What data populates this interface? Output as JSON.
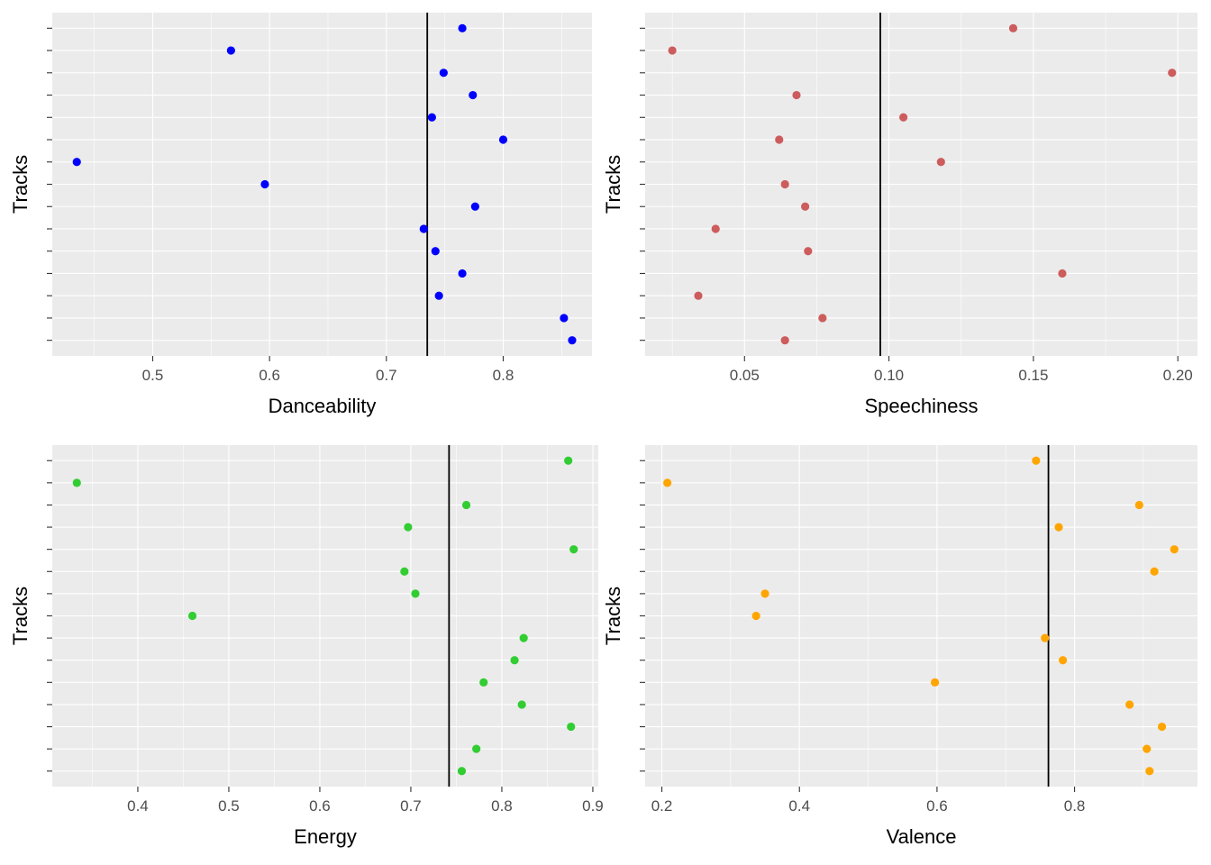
{
  "chart_data": [
    {
      "type": "scatter",
      "xlabel": "Danceability",
      "ylabel": "Tracks",
      "xlim": [
        0.414,
        0.876
      ],
      "x_ticks": [
        0.5,
        0.6,
        0.7,
        0.8
      ],
      "x_tick_labels": [
        "0.5",
        "0.6",
        "0.7",
        "0.8"
      ],
      "color": "#0000FF",
      "reference_line": 0.735,
      "x": [
        0.765,
        0.567,
        0.749,
        0.774,
        0.739,
        0.8,
        0.435,
        0.596,
        0.776,
        0.732,
        0.742,
        0.765,
        0.745,
        0.852,
        0.859
      ]
    },
    {
      "type": "scatter",
      "xlabel": "Speechiness",
      "ylabel": "Tracks",
      "xlim": [
        0.0156,
        0.2068
      ],
      "x_ticks": [
        0.05,
        0.1,
        0.15,
        0.2
      ],
      "x_tick_labels": [
        "0.05",
        "0.10",
        "0.15",
        "0.20"
      ],
      "color": "#CD5C5C",
      "reference_line": 0.097,
      "x": [
        0.143,
        0.025,
        0.198,
        0.068,
        0.105,
        0.062,
        0.118,
        0.064,
        0.071,
        0.04,
        0.072,
        0.16,
        0.034,
        0.077,
        0.064
      ]
    },
    {
      "type": "scatter",
      "xlabel": "Energy",
      "ylabel": "Tracks",
      "xlim": [
        0.306,
        0.906
      ],
      "x_ticks": [
        0.4,
        0.5,
        0.6,
        0.7,
        0.8,
        0.9
      ],
      "x_tick_labels": [
        "0.4",
        "0.5",
        "0.6",
        "0.7",
        "0.8",
        "0.9"
      ],
      "color": "#32CD32",
      "reference_line": 0.742,
      "x": [
        0.873,
        0.333,
        0.761,
        0.697,
        0.879,
        0.693,
        0.705,
        0.46,
        0.824,
        0.814,
        0.78,
        0.822,
        0.876,
        0.772,
        0.756
      ]
    },
    {
      "type": "scatter",
      "xlabel": "Valence",
      "ylabel": "Tracks",
      "xlim": [
        0.1757,
        0.9787
      ],
      "x_ticks": [
        0.2,
        0.4,
        0.6,
        0.8
      ],
      "x_tick_labels": [
        "0.2",
        "0.4",
        "0.6",
        "0.8"
      ],
      "color": "#FFA500",
      "reference_line": 0.762,
      "x": [
        0.744,
        0.208,
        0.894,
        0.777,
        0.945,
        0.916,
        0.35,
        0.337,
        0.757,
        0.783,
        0.597,
        0.88,
        0.927,
        0.905,
        0.909
      ]
    }
  ]
}
